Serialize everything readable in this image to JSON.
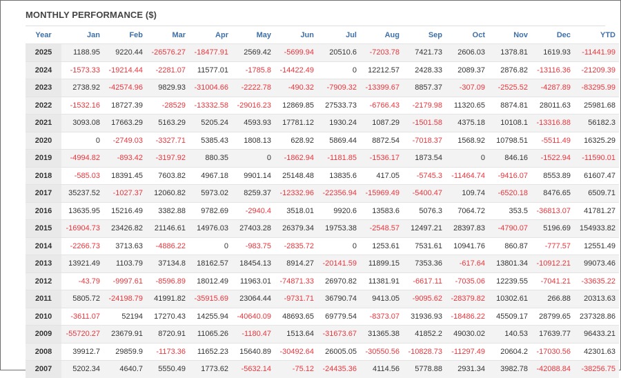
{
  "title": "MONTHLY PERFORMANCE ($)",
  "colors": {
    "header": "#3e6fa6",
    "negative": "#e8363d",
    "text": "#333333"
  },
  "columns": [
    "Year",
    "Jan",
    "Feb",
    "Mar",
    "Apr",
    "May",
    "Jun",
    "Jul",
    "Aug",
    "Sep",
    "Oct",
    "Nov",
    "Dec",
    "YTD"
  ],
  "rows": [
    [
      "2025",
      "1188.95",
      "9220.44",
      "-26576.27",
      "-18477.91",
      "2569.42",
      "-5699.94",
      "20510.6",
      "-7203.78",
      "7421.73",
      "2606.03",
      "1378.81",
      "1619.93",
      "-11441.99"
    ],
    [
      "2024",
      "-1573.33",
      "-19214.44",
      "-2281.07",
      "11577.01",
      "-1785.8",
      "-14422.49",
      "0",
      "12212.57",
      "2428.33",
      "2089.37",
      "2876.82",
      "-13116.36",
      "-21209.39"
    ],
    [
      "2023",
      "2738.92",
      "-42574.96",
      "9829.93",
      "-31004.66",
      "-2222.78",
      "-490.32",
      "-7909.32",
      "-13399.67",
      "8857.37",
      "-307.09",
      "-2525.52",
      "-4287.89",
      "-83295.99"
    ],
    [
      "2022",
      "-1532.16",
      "18727.39",
      "-28529",
      "-13332.58",
      "-29016.23",
      "12869.85",
      "27533.73",
      "-6766.43",
      "-2179.98",
      "11320.65",
      "8874.81",
      "28011.63",
      "25981.68"
    ],
    [
      "2021",
      "3093.08",
      "17663.29",
      "5163.29",
      "5205.24",
      "4593.93",
      "17781.12",
      "1930.24",
      "1087.29",
      "-1501.58",
      "4375.18",
      "10108.1",
      "-13316.88",
      "56182.3"
    ],
    [
      "2020",
      "0",
      "-2749.03",
      "-3327.71",
      "5385.43",
      "1808.13",
      "628.92",
      "5869.44",
      "8872.54",
      "-7018.37",
      "1568.92",
      "10798.51",
      "-5511.49",
      "16325.29"
    ],
    [
      "2019",
      "-4994.82",
      "-893.42",
      "-3197.92",
      "880.35",
      "0",
      "-1862.94",
      "-1181.85",
      "-1536.17",
      "1873.54",
      "0",
      "846.16",
      "-1522.94",
      "-11590.01"
    ],
    [
      "2018",
      "-585.03",
      "18391.45",
      "7603.82",
      "4967.18",
      "9901.14",
      "25148.48",
      "13835.6",
      "417.05",
      "-5745.3",
      "-11464.74",
      "-9416.07",
      "8553.89",
      "61607.47"
    ],
    [
      "2017",
      "35237.52",
      "-1027.37",
      "12060.82",
      "5973.02",
      "8259.37",
      "-12332.96",
      "-22356.94",
      "-15969.49",
      "-5400.47",
      "109.74",
      "-6520.18",
      "8476.65",
      "6509.71"
    ],
    [
      "2016",
      "13635.95",
      "15216.49",
      "3382.88",
      "9782.69",
      "-2940.4",
      "3518.01",
      "9920.6",
      "13583.6",
      "5076.3",
      "7064.72",
      "353.5",
      "-36813.07",
      "41781.27"
    ],
    [
      "2015",
      "-16904.73",
      "23426.82",
      "21146.61",
      "14976.03",
      "27403.28",
      "26379.34",
      "19753.38",
      "-2548.57",
      "12497.21",
      "28397.83",
      "-4790.07",
      "5196.69",
      "154933.82"
    ],
    [
      "2014",
      "-2266.73",
      "3713.63",
      "-4886.22",
      "0",
      "-983.75",
      "-2835.72",
      "0",
      "1253.61",
      "7531.61",
      "10941.76",
      "860.87",
      "-777.57",
      "12551.49"
    ],
    [
      "2013",
      "13921.49",
      "1103.79",
      "37134.8",
      "18162.57",
      "18454.13",
      "8914.27",
      "-20141.59",
      "11899.15",
      "7353.36",
      "-617.64",
      "13801.34",
      "-10912.21",
      "99073.46"
    ],
    [
      "2012",
      "-43.79",
      "-9997.61",
      "-8596.89",
      "18012.49",
      "11963.01",
      "-74871.33",
      "26970.82",
      "11381.91",
      "-6617.11",
      "-7035.06",
      "12239.55",
      "-7041.21",
      "-33635.22"
    ],
    [
      "2011",
      "5805.72",
      "-24198.79",
      "41991.82",
      "-35915.69",
      "23064.44",
      "-9731.71",
      "36790.74",
      "9413.05",
      "-9095.62",
      "-28379.82",
      "10302.61",
      "266.88",
      "20313.63"
    ],
    [
      "2010",
      "-3611.07",
      "52194",
      "17270.43",
      "14255.94",
      "-40640.09",
      "48693.65",
      "69779.54",
      "-8373.07",
      "31936.93",
      "-18486.22",
      "45509.17",
      "28799.65",
      "237328.86"
    ],
    [
      "2009",
      "-55720.27",
      "23679.91",
      "8720.91",
      "11065.26",
      "-1180.47",
      "1513.64",
      "-31673.67",
      "31365.38",
      "41852.2",
      "49030.02",
      "140.53",
      "17639.77",
      "96433.21"
    ],
    [
      "2008",
      "39912.7",
      "29859.9",
      "-1173.36",
      "11652.23",
      "15640.89",
      "-30492.64",
      "26005.05",
      "-30550.56",
      "-10828.73",
      "-11297.49",
      "20604.2",
      "-17030.56",
      "42301.63"
    ],
    [
      "2007",
      "5202.34",
      "4640.7",
      "5550.49",
      "1773.62",
      "-5632.14",
      "-75.12",
      "-24435.36",
      "4114.56",
      "5778.88",
      "2931.34",
      "3982.78",
      "-42088.84",
      "-38256.75"
    ]
  ]
}
